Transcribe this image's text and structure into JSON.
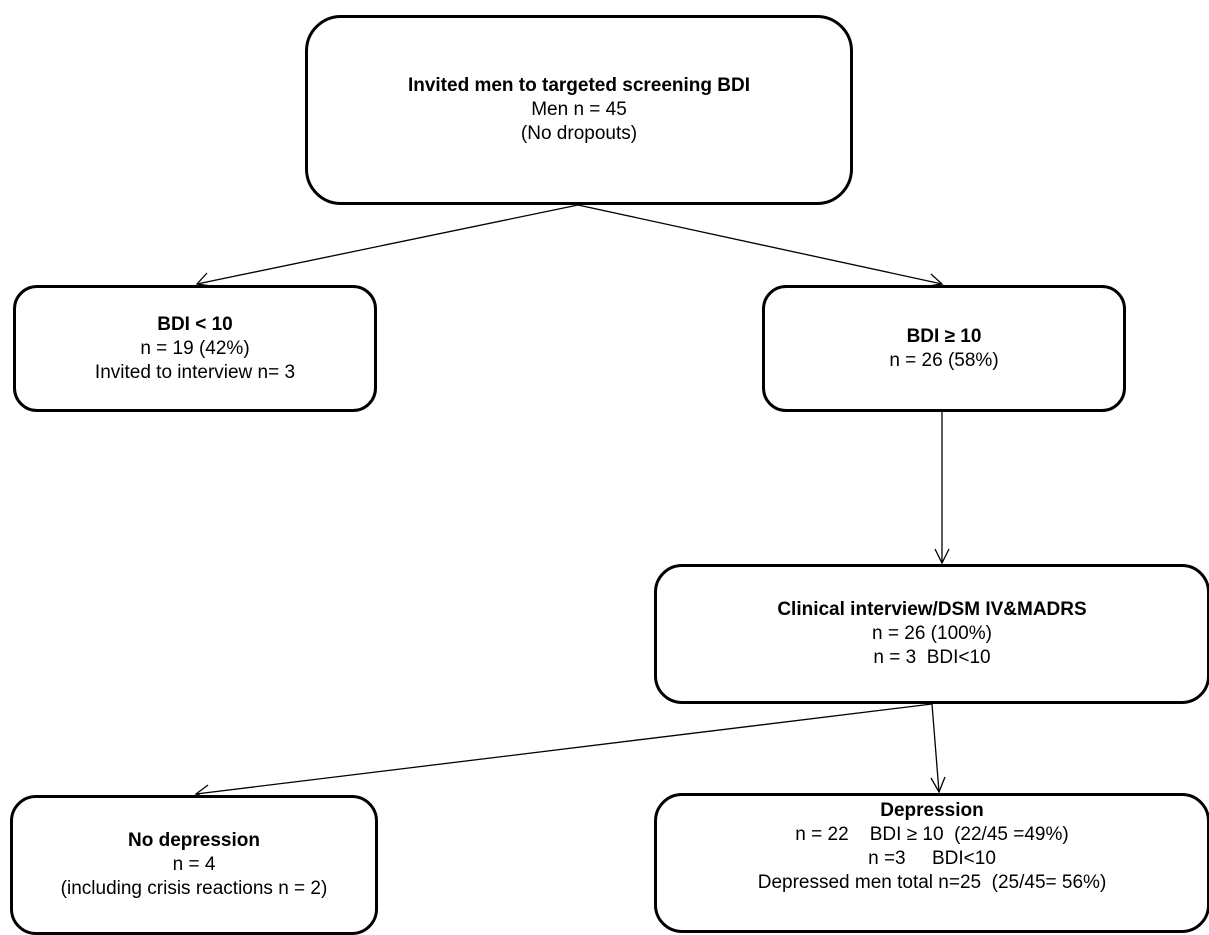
{
  "boxes": {
    "screening": {
      "title": "Invited men to targeted screening BDI",
      "lines": [
        "Men n = 45",
        "(No dropouts)"
      ]
    },
    "bdi_low": {
      "title": "BDI < 10",
      "lines": [
        "n = 19 (42%)",
        "Invited to interview n= 3"
      ]
    },
    "bdi_high": {
      "title": "BDI  ≥ 10",
      "lines": [
        "n = 26 (58%)"
      ]
    },
    "interview": {
      "title": "Clinical interview/DSM IV&MADRS",
      "lines": [
        "n = 26 (100%)",
        "n = 3  BDI<10"
      ]
    },
    "no_depression": {
      "title": "No depression",
      "lines": [
        "n = 4",
        "(including crisis reactions n = 2)"
      ]
    },
    "depression": {
      "title": "Depression",
      "lines": [
        "n = 22    BDI ≥ 10  (22/45 =49%)",
        "n =3     BDI<10",
        "Depressed men total n=25  (25/45= 56%)"
      ]
    }
  }
}
